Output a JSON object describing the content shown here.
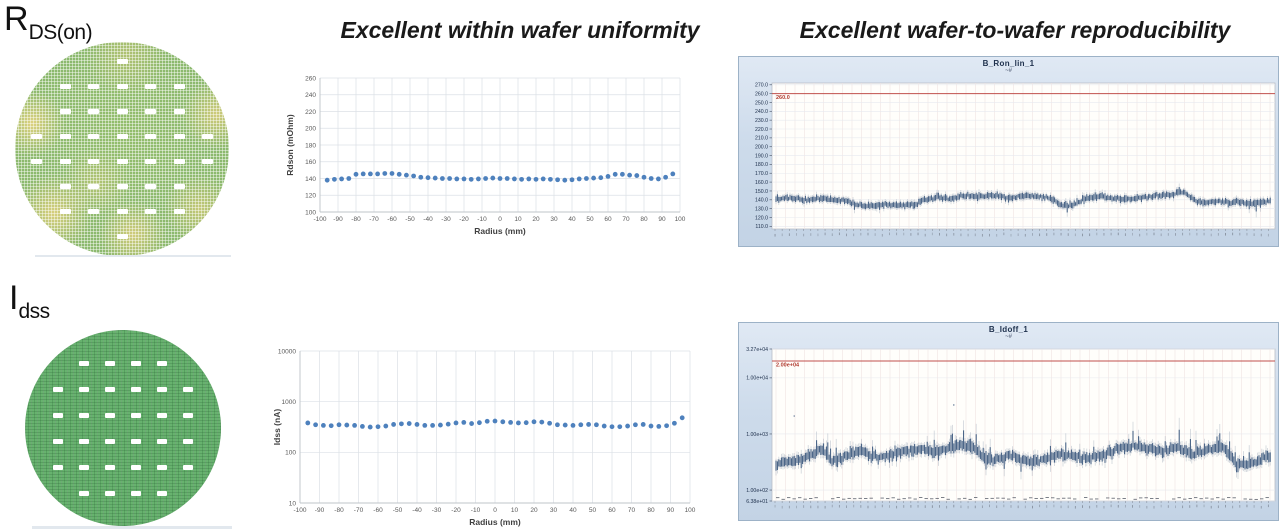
{
  "parameters": {
    "rdson": {
      "base": "R",
      "subscript": "DS(on)"
    },
    "idss": {
      "base": "I",
      "subscript": "dss"
    }
  },
  "headlines": {
    "within_wafer": "Excellent within wafer uniformity",
    "wafer_to_wafer": "Excellent wafer-to-wafer reproducibility"
  },
  "colors": {
    "scatter_blue": "#4e81bd",
    "control_navy": "#2a4a73",
    "control_gray": "#97a3b4",
    "spec_red": "#c0504d",
    "spec_red_label": "#b03a2e",
    "grid_light": "#dce0e6",
    "jmp_grid_v": "#f0e2e2",
    "jmp_grid_h": "#e7e9ef",
    "wafer_green_mottled": "#8cb96e",
    "wafer_green_uniform": "#67b26e"
  },
  "chart_data": [
    {
      "id": "rdson_vs_radius",
      "type": "scatter",
      "title": "",
      "xlabel": "Radius (mm)",
      "ylabel": "Rdson (mOhm)",
      "xlim": [
        -100,
        100
      ],
      "ylim": [
        100,
        260
      ],
      "xticks": [
        -100,
        -90,
        -80,
        -70,
        -60,
        -50,
        -40,
        -30,
        -20,
        -10,
        0,
        10,
        20,
        30,
        40,
        50,
        60,
        70,
        80,
        90,
        100
      ],
      "yticks": [
        100,
        120,
        140,
        160,
        180,
        200,
        220,
        240,
        260
      ],
      "grid": true,
      "legend": "none",
      "x": [
        -96,
        -92,
        -88,
        -84,
        -80,
        -76,
        -72,
        -68,
        -64,
        -60,
        -56,
        -52,
        -48,
        -44,
        -40,
        -36,
        -32,
        -28,
        -24,
        -20,
        -16,
        -12,
        -8,
        -4,
        0,
        4,
        8,
        12,
        16,
        20,
        24,
        28,
        32,
        36,
        40,
        44,
        48,
        52,
        56,
        60,
        64,
        68,
        72,
        76,
        80,
        84,
        88,
        92,
        96
      ],
      "y": [
        138,
        139,
        139.5,
        140,
        145,
        145.5,
        145.5,
        145.5,
        146,
        146,
        145,
        144,
        143,
        141.5,
        141,
        140.5,
        140,
        140,
        139.5,
        139.5,
        139,
        139.5,
        140,
        140.5,
        140,
        140,
        139.5,
        139,
        139.5,
        139,
        139.5,
        139,
        138.5,
        138,
        138.5,
        139.5,
        140,
        140.5,
        141,
        142.5,
        145,
        145,
        144,
        143.5,
        141.5,
        140,
        139.5,
        141.5,
        145.5
      ]
    },
    {
      "id": "idss_vs_radius",
      "type": "scatter",
      "title": "",
      "xlabel": "Radius (mm)",
      "ylabel": "Idss (nA)",
      "yscale": "log",
      "xlim": [
        -100,
        100
      ],
      "ylim": [
        10,
        10000
      ],
      "xticks": [
        -100,
        -90,
        -80,
        -70,
        -60,
        -50,
        -40,
        -30,
        -20,
        -10,
        0,
        10,
        20,
        30,
        40,
        50,
        60,
        70,
        80,
        90,
        100
      ],
      "yticks": [
        10,
        100,
        1000,
        10000
      ],
      "grid": true,
      "legend": "none",
      "x": [
        -96,
        -92,
        -88,
        -84,
        -80,
        -76,
        -72,
        -68,
        -64,
        -60,
        -56,
        -52,
        -48,
        -44,
        -40,
        -36,
        -32,
        -28,
        -24,
        -20,
        -16,
        -12,
        -8,
        -4,
        0,
        4,
        8,
        12,
        16,
        20,
        24,
        28,
        32,
        36,
        40,
        44,
        48,
        52,
        56,
        60,
        64,
        68,
        72,
        76,
        80,
        84,
        88,
        92,
        96
      ],
      "y": [
        380,
        350,
        340,
        335,
        350,
        345,
        340,
        325,
        315,
        320,
        330,
        355,
        365,
        370,
        355,
        340,
        340,
        345,
        360,
        380,
        390,
        370,
        385,
        410,
        415,
        400,
        390,
        380,
        385,
        400,
        395,
        375,
        350,
        345,
        340,
        350,
        355,
        350,
        330,
        320,
        320,
        330,
        350,
        355,
        330,
        325,
        335,
        375,
        480
      ]
    },
    {
      "id": "ron_wafer_to_wafer_trend",
      "type": "control-scatter",
      "title": "B_Ron_lin_1",
      "subtitle": "~#",
      "ylim": [
        107,
        272
      ],
      "yticks": [
        270,
        260,
        250,
        240,
        230,
        220,
        210,
        200,
        190,
        180,
        170,
        160,
        150,
        140,
        130,
        120,
        110
      ],
      "ytick_labels": [
        "270.0",
        "260.0",
        "250.0",
        "240.0",
        "230.0",
        "220.0",
        "210.0",
        "200.0",
        "190.0",
        "180.0",
        "170.0",
        "160.0",
        "150.0",
        "140.0",
        "130.0",
        "120.0",
        "110.0"
      ],
      "spec_limit": {
        "value": 260,
        "label": "260.0"
      },
      "band_halfspread": 4.5,
      "band_mean_profile": [
        [
          0,
          141
        ],
        [
          0.03,
          142
        ],
        [
          0.06,
          140
        ],
        [
          0.09,
          141
        ],
        [
          0.12,
          140
        ],
        [
          0.14,
          139
        ],
        [
          0.16,
          134
        ],
        [
          0.19,
          133
        ],
        [
          0.22,
          135
        ],
        [
          0.25,
          133
        ],
        [
          0.28,
          134
        ],
        [
          0.3,
          140
        ],
        [
          0.33,
          143
        ],
        [
          0.35,
          141
        ],
        [
          0.38,
          145
        ],
        [
          0.41,
          144
        ],
        [
          0.44,
          145
        ],
        [
          0.47,
          142
        ],
        [
          0.5,
          144
        ],
        [
          0.53,
          144
        ],
        [
          0.56,
          141
        ],
        [
          0.575,
          134
        ],
        [
          0.59,
          133
        ],
        [
          0.61,
          137
        ],
        [
          0.63,
          142
        ],
        [
          0.66,
          144
        ],
        [
          0.68,
          142
        ],
        [
          0.71,
          141
        ],
        [
          0.74,
          142
        ],
        [
          0.77,
          145
        ],
        [
          0.8,
          146
        ],
        [
          0.82,
          149
        ],
        [
          0.835,
          144
        ],
        [
          0.85,
          138
        ],
        [
          0.87,
          137
        ],
        [
          0.9,
          138
        ],
        [
          0.92,
          137
        ],
        [
          0.94,
          138
        ],
        [
          0.96,
          136
        ],
        [
          0.98,
          137
        ],
        [
          1,
          139
        ]
      ],
      "upper_excursions": [
        [
          0,
          2
        ],
        [
          0.38,
          3
        ],
        [
          0.6,
          4
        ],
        [
          0.8,
          3
        ],
        [
          0.82,
          7
        ],
        [
          0.84,
          2
        ],
        [
          1,
          2
        ]
      ],
      "lower_excursions": [
        [
          0,
          2
        ],
        [
          0.16,
          4
        ],
        [
          0.22,
          4
        ],
        [
          0.3,
          2
        ],
        [
          0.45,
          2
        ],
        [
          0.55,
          2
        ],
        [
          0.575,
          12
        ],
        [
          0.61,
          3
        ],
        [
          0.75,
          2
        ],
        [
          0.93,
          2
        ],
        [
          0.95,
          10
        ],
        [
          0.98,
          8
        ],
        [
          1,
          3
        ]
      ]
    },
    {
      "id": "idoff_wafer_to_wafer_trend",
      "type": "control-scatter",
      "title": "B_Idoff_1",
      "subtitle": "~#",
      "yscale": "log",
      "ylim": [
        63.8,
        32700
      ],
      "yticks": [
        32700,
        10000,
        1000,
        100,
        63.8
      ],
      "ytick_labels": [
        "3.27e+04",
        "1.00e+04",
        "1.00e+03",
        "1.00e+02",
        "6.38e+01"
      ],
      "spec_limit": {
        "value": 20000,
        "label": "2.00e+04"
      },
      "band_halfspread_decades": 0.12,
      "band_mean_profile": [
        [
          0,
          300
        ],
        [
          0.02,
          310
        ],
        [
          0.05,
          340
        ],
        [
          0.08,
          480
        ],
        [
          0.095,
          520
        ],
        [
          0.11,
          330
        ],
        [
          0.13,
          360
        ],
        [
          0.16,
          480
        ],
        [
          0.175,
          520
        ],
        [
          0.19,
          380
        ],
        [
          0.22,
          400
        ],
        [
          0.25,
          480
        ],
        [
          0.28,
          520
        ],
        [
          0.3,
          560
        ],
        [
          0.32,
          460
        ],
        [
          0.35,
          560
        ],
        [
          0.37,
          620
        ],
        [
          0.4,
          560
        ],
        [
          0.42,
          340
        ],
        [
          0.45,
          360
        ],
        [
          0.47,
          420
        ],
        [
          0.5,
          340
        ],
        [
          0.53,
          330
        ],
        [
          0.56,
          400
        ],
        [
          0.58,
          440
        ],
        [
          0.61,
          380
        ],
        [
          0.63,
          360
        ],
        [
          0.66,
          420
        ],
        [
          0.69,
          540
        ],
        [
          0.72,
          620
        ],
        [
          0.75,
          540
        ],
        [
          0.78,
          500
        ],
        [
          0.81,
          580
        ],
        [
          0.84,
          440
        ],
        [
          0.87,
          500
        ],
        [
          0.9,
          580
        ],
        [
          0.93,
          300
        ],
        [
          0.95,
          280
        ],
        [
          0.97,
          320
        ],
        [
          1,
          430
        ]
      ],
      "upper_excursions": [
        [
          0,
          0.1
        ],
        [
          0.08,
          0.35
        ],
        [
          0.1,
          0.2
        ],
        [
          0.17,
          0.35
        ],
        [
          0.26,
          0.3
        ],
        [
          0.3,
          0.35
        ],
        [
          0.36,
          0.45
        ],
        [
          0.4,
          0.35
        ],
        [
          0.45,
          0.2
        ],
        [
          0.5,
          0.15
        ],
        [
          0.58,
          0.35
        ],
        [
          0.63,
          0.2
        ],
        [
          0.7,
          0.45
        ],
        [
          0.75,
          0.35
        ],
        [
          0.81,
          0.45
        ],
        [
          0.86,
          0.3
        ],
        [
          0.91,
          0.45
        ],
        [
          0.95,
          0.25
        ],
        [
          1,
          0.3
        ]
      ],
      "lower_excursions": [
        [
          0,
          0.08
        ],
        [
          0.42,
          0.2
        ],
        [
          0.6,
          0.12
        ],
        [
          0.9,
          0.1
        ],
        [
          0.93,
          0.28
        ],
        [
          0.955,
          0.32
        ],
        [
          0.98,
          0.15
        ],
        [
          1,
          0.1
        ]
      ],
      "bottom_rail_value": 63.8
    }
  ]
}
